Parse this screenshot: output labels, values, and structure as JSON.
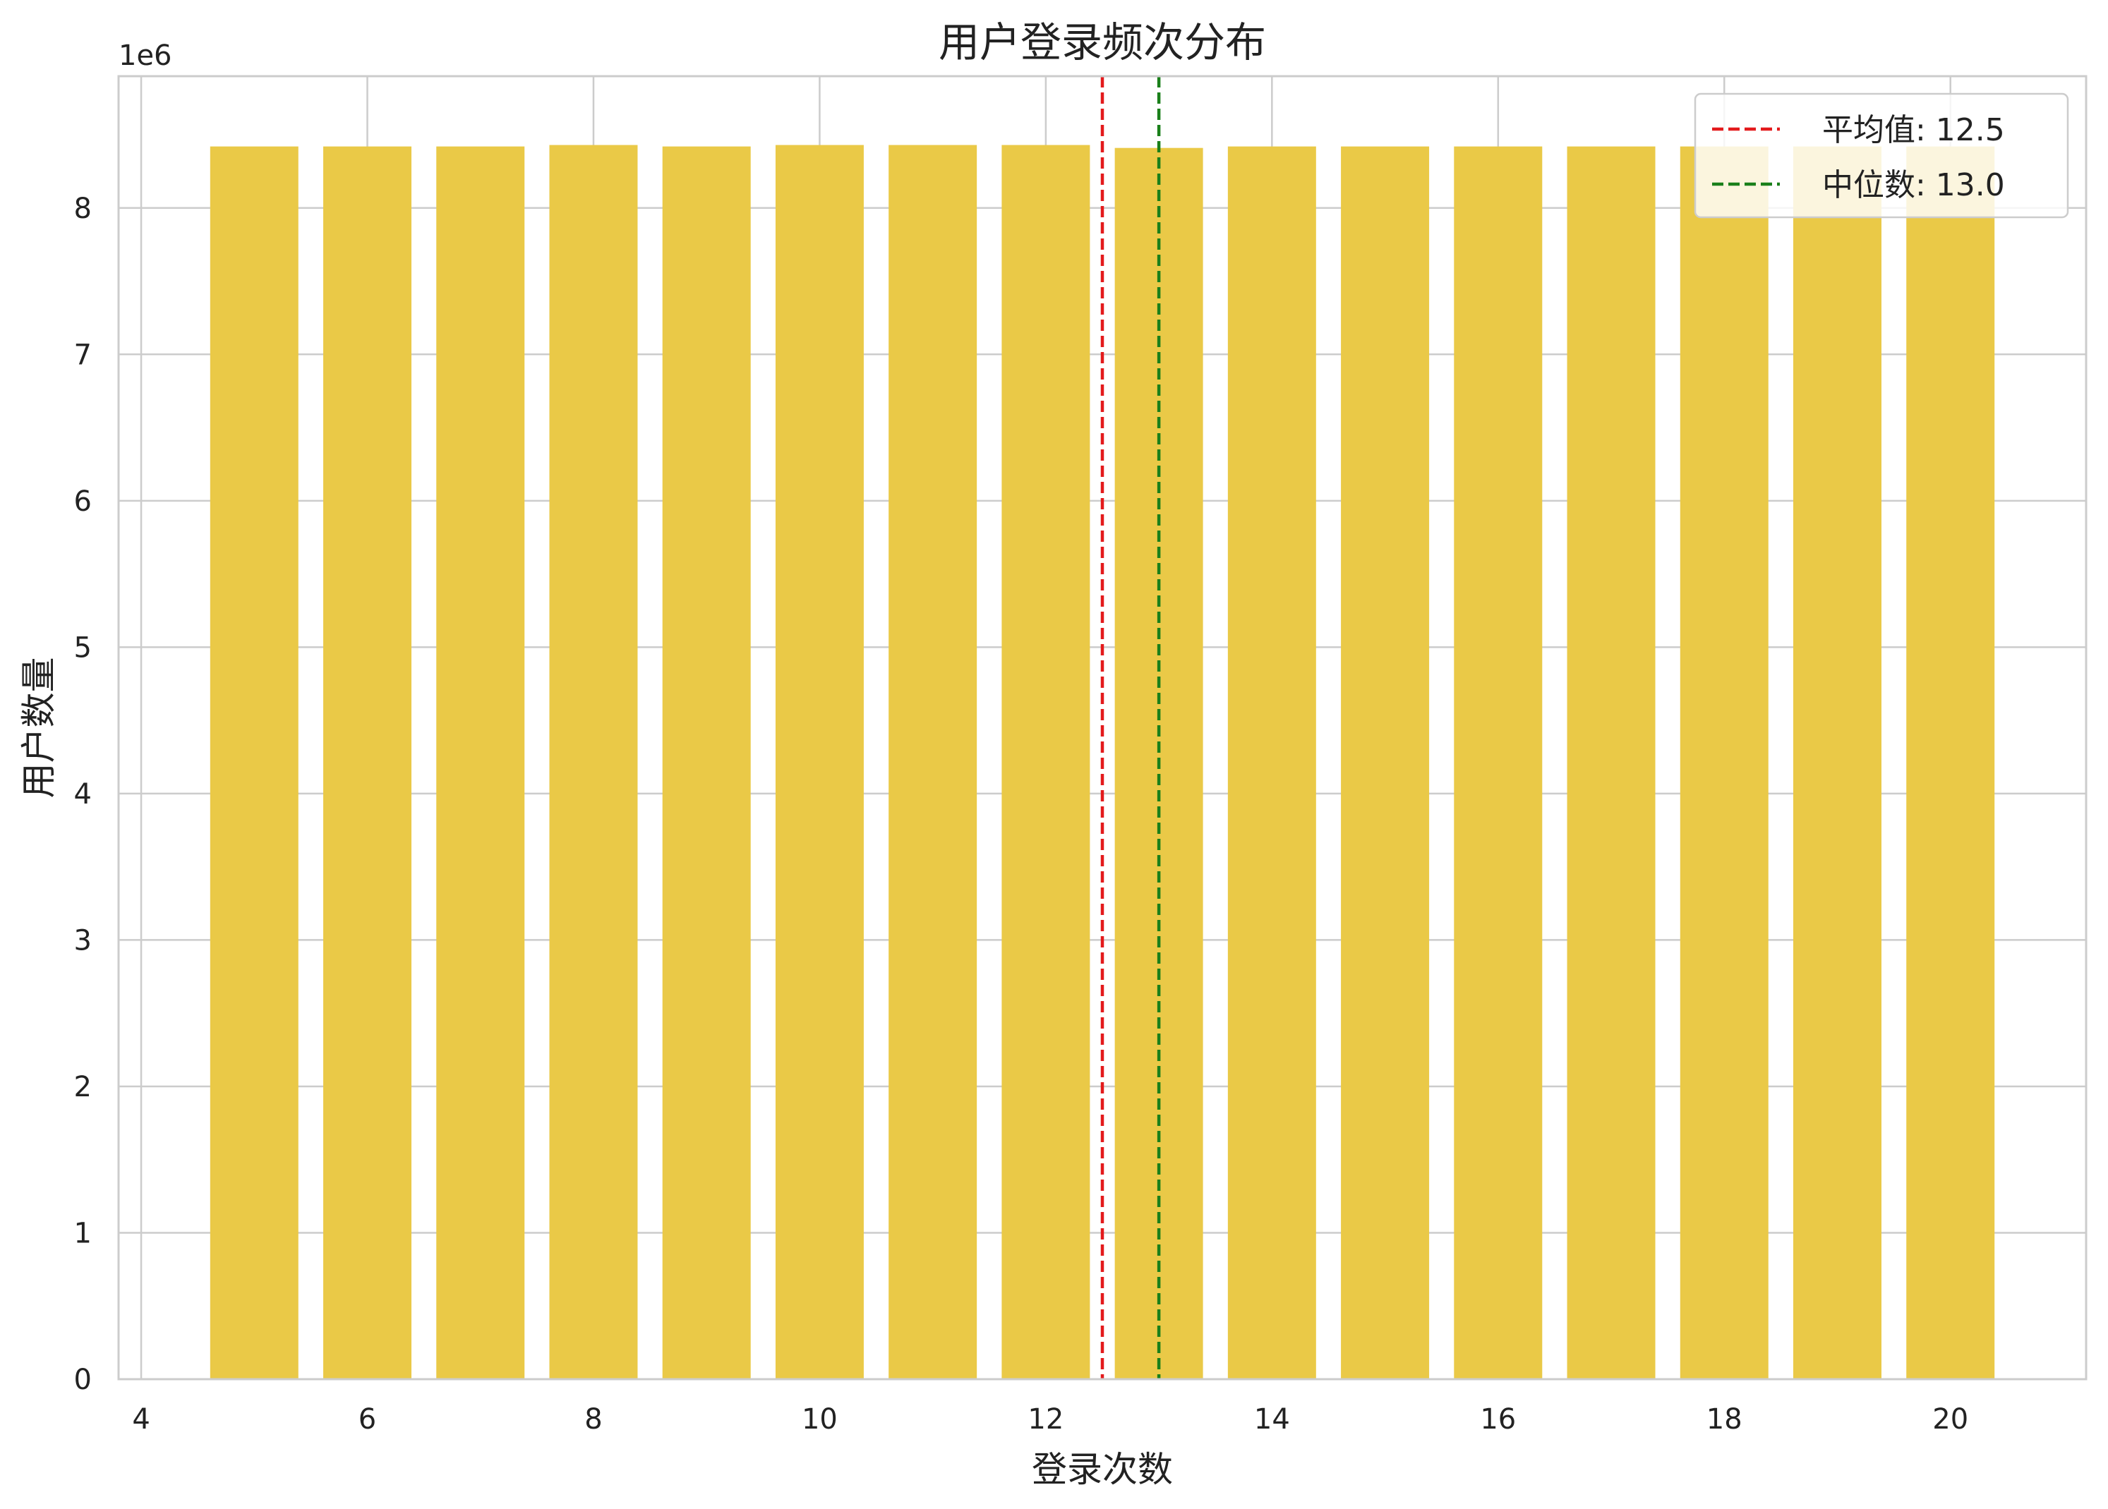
{
  "chart_data": {
    "type": "bar",
    "title": "用户登录频次分布",
    "xlabel": "登录次数",
    "ylabel": "用户数量",
    "y_offset_label": "1e6",
    "y_multiplier": 1000000,
    "xlim": [
      3.8,
      21.2
    ],
    "ylim": [
      0,
      8.9
    ],
    "x_ticks": [
      4,
      6,
      8,
      10,
      12,
      14,
      16,
      18,
      20
    ],
    "y_ticks": [
      0,
      1,
      2,
      3,
      4,
      5,
      6,
      7,
      8
    ],
    "grid": true,
    "legend_position": "top-right",
    "bar_color": "#EAC947",
    "x": [
      5,
      6,
      7,
      8,
      9,
      10,
      11,
      12,
      13,
      14,
      15,
      16,
      17,
      18,
      19,
      20
    ],
    "values": [
      8.42,
      8.42,
      8.42,
      8.43,
      8.42,
      8.43,
      8.43,
      8.43,
      8.41,
      8.42,
      8.42,
      8.42,
      8.42,
      8.42,
      8.42,
      8.42
    ],
    "reference_lines": [
      {
        "label": "平均值: 12.5",
        "x": 12.5,
        "color": "#E31A1C"
      },
      {
        "label": "中位数: 13.0",
        "x": 13.0,
        "color": "#1A7F1A"
      }
    ]
  }
}
